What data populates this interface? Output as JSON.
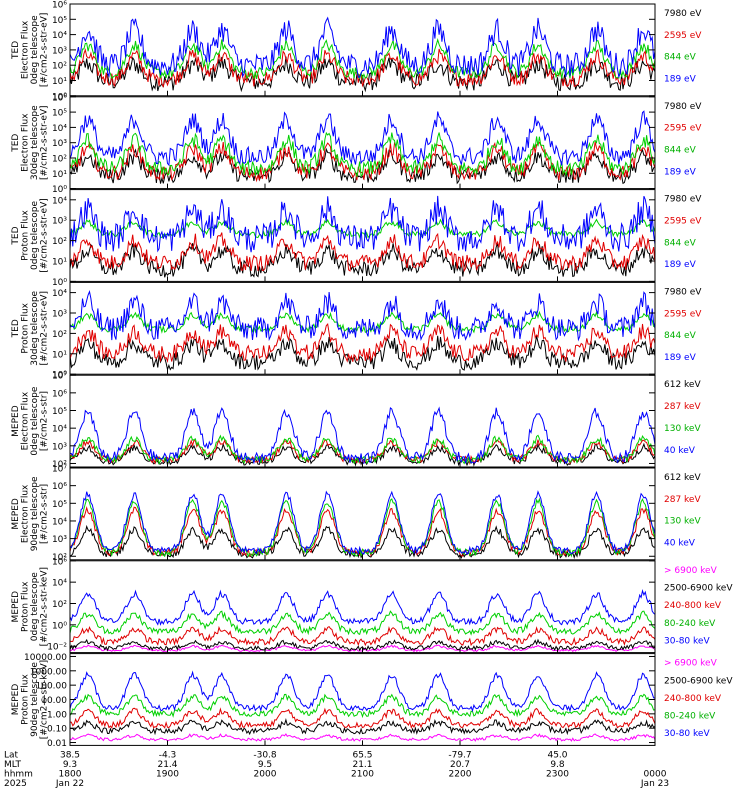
{
  "chart_data": [
    {
      "type": "line",
      "ylabel": [
        "TED",
        "Electron Flux",
        "0deg telescope",
        "[#/cm2-s-str-eV]"
      ],
      "ylog": true,
      "yticks": [
        {
          "v": 0,
          "t": "10⁰"
        },
        {
          "v": 1,
          "t": "10¹"
        },
        {
          "v": 2,
          "t": "10²"
        },
        {
          "v": 3,
          "t": "10³"
        },
        {
          "v": 4,
          "t": "10⁴"
        },
        {
          "v": 5,
          "t": "10⁵"
        },
        {
          "v": 6,
          "t": "10⁶"
        }
      ],
      "ylim": [
        0,
        6
      ],
      "series": [
        {
          "name": "7980 eV",
          "color": "#000000",
          "base": 0.9,
          "amp": 1.2,
          "noise": 0.6
        },
        {
          "name": "2595 eV",
          "color": "#e00000",
          "base": 1.1,
          "amp": 1.5,
          "noise": 0.5
        },
        {
          "name": "844 eV",
          "color": "#00d000",
          "base": 1.5,
          "amp": 1.8,
          "noise": 0.4
        },
        {
          "name": "189 eV",
          "color": "#0000ff",
          "base": 2.0,
          "amp": 2.3,
          "noise": 0.8
        }
      ]
    },
    {
      "type": "line",
      "ylabel": [
        "TED",
        "Electron Flux",
        "30deg telescope",
        "[#/cm2-s-str-eV]"
      ],
      "ylog": true,
      "yticks": [
        {
          "v": 0,
          "t": "10⁰"
        },
        {
          "v": 1,
          "t": "10¹"
        },
        {
          "v": 2,
          "t": "10²"
        },
        {
          "v": 3,
          "t": "10³"
        },
        {
          "v": 4,
          "t": "10⁴"
        },
        {
          "v": 5,
          "t": "10⁵"
        },
        {
          "v": 6,
          "t": "10⁶"
        }
      ],
      "ylim": [
        0,
        6
      ],
      "series": [
        {
          "name": "7980 eV",
          "color": "#000000",
          "base": 0.8,
          "amp": 1.3,
          "noise": 0.5
        },
        {
          "name": "2595 eV",
          "color": "#e00000",
          "base": 1.0,
          "amp": 1.6,
          "noise": 0.5
        },
        {
          "name": "844 eV",
          "color": "#00d000",
          "base": 1.3,
          "amp": 1.9,
          "noise": 0.5
        },
        {
          "name": "189 eV",
          "color": "#0000ff",
          "base": 2.1,
          "amp": 2.4,
          "noise": 0.6
        }
      ]
    },
    {
      "type": "line",
      "ylabel": [
        "TED",
        "Proton Flux",
        "0deg telescope",
        "[#/cm2-s-str-eV]"
      ],
      "ylog": true,
      "yticks": [
        {
          "v": 0,
          "t": "10⁰"
        },
        {
          "v": 1,
          "t": "10¹"
        },
        {
          "v": 2,
          "t": "10²"
        },
        {
          "v": 3,
          "t": "10³"
        },
        {
          "v": 4,
          "t": "10⁴"
        }
      ],
      "ylim": [
        0,
        4.5
      ],
      "series": [
        {
          "name": "7980 eV",
          "color": "#000000",
          "base": 0.6,
          "amp": 0.9,
          "noise": 0.4
        },
        {
          "name": "2595 eV",
          "color": "#e00000",
          "base": 0.9,
          "amp": 1.1,
          "noise": 0.4
        },
        {
          "name": "844 eV",
          "color": "#00d000",
          "base": 2.3,
          "amp": 0.6,
          "noise": 0.15
        },
        {
          "name": "189 eV",
          "color": "#0000ff",
          "base": 2.1,
          "amp": 1.4,
          "noise": 0.7
        }
      ]
    },
    {
      "type": "line",
      "ylabel": [
        "TED",
        "Proton Flux",
        "30deg telescope",
        "[#/cm2-s-str-eV]"
      ],
      "ylog": true,
      "yticks": [
        {
          "v": 0,
          "t": "10⁰"
        },
        {
          "v": 1,
          "t": "10¹"
        },
        {
          "v": 2,
          "t": "10²"
        },
        {
          "v": 3,
          "t": "10³"
        },
        {
          "v": 4,
          "t": "10⁴"
        }
      ],
      "ylim": [
        0,
        4.5
      ],
      "series": [
        {
          "name": "7980 eV",
          "color": "#000000",
          "base": 0.6,
          "amp": 0.9,
          "noise": 0.4
        },
        {
          "name": "2595 eV",
          "color": "#e00000",
          "base": 1.0,
          "amp": 1.1,
          "noise": 0.4
        },
        {
          "name": "844 eV",
          "color": "#00d000",
          "base": 2.2,
          "amp": 0.7,
          "noise": 0.15
        },
        {
          "name": "189 eV",
          "color": "#0000ff",
          "base": 2.2,
          "amp": 1.3,
          "noise": 0.6
        }
      ]
    },
    {
      "type": "line",
      "ylabel": [
        "MEPED",
        "Electron Flux",
        "0deg telescope",
        "[#/cm2-s-str]"
      ],
      "ylog": true,
      "yticks": [
        {
          "v": 2,
          "t": "10²"
        },
        {
          "v": 3,
          "t": "10³"
        },
        {
          "v": 4,
          "t": "10⁴"
        },
        {
          "v": 5,
          "t": "10⁵"
        },
        {
          "v": 6,
          "t": "10⁶"
        },
        {
          "v": 7,
          "t": "10⁷"
        }
      ],
      "ylim": [
        1.8,
        7
      ],
      "series": [
        {
          "name": "612 keV",
          "color": "#000000",
          "base": 2.1,
          "amp": 0.8,
          "noise": 0.2
        },
        {
          "name": "287 keV",
          "color": "#e00000",
          "base": 2.2,
          "amp": 1.0,
          "noise": 0.2
        },
        {
          "name": "130 keV",
          "color": "#00d000",
          "base": 2.2,
          "amp": 1.2,
          "noise": 0.2
        },
        {
          "name": "40 keV",
          "color": "#0000ff",
          "base": 2.3,
          "amp": 2.6,
          "noise": 0.3
        }
      ]
    },
    {
      "type": "line",
      "ylabel": [
        "MEPED",
        "Electron Flux",
        "90deg telescope",
        "[#/cm2-s-str]"
      ],
      "ylog": true,
      "yticks": [
        {
          "v": 2,
          "t": "10²"
        },
        {
          "v": 3,
          "t": "10³"
        },
        {
          "v": 4,
          "t": "10⁴"
        },
        {
          "v": 5,
          "t": "10⁵"
        },
        {
          "v": 6,
          "t": "10⁶"
        },
        {
          "v": 7,
          "t": "10⁷"
        }
      ],
      "ylim": [
        1.8,
        7
      ],
      "series": [
        {
          "name": "612 keV",
          "color": "#000000",
          "base": 2.1,
          "amp": 1.4,
          "noise": 0.2
        },
        {
          "name": "287 keV",
          "color": "#e00000",
          "base": 2.2,
          "amp": 2.4,
          "noise": 0.2
        },
        {
          "name": "130 keV",
          "color": "#00d000",
          "base": 2.2,
          "amp": 2.9,
          "noise": 0.2
        },
        {
          "name": "40 keV",
          "color": "#0000ff",
          "base": 2.3,
          "amp": 3.2,
          "noise": 0.2
        }
      ]
    },
    {
      "type": "line",
      "ylabel": [
        "MEPED",
        "Proton Flux",
        "0deg telescope",
        "[#/cm2-s-str-keV]"
      ],
      "ylog": true,
      "yticks": [
        {
          "v": -2,
          "t": "10⁻²"
        },
        {
          "v": 0,
          "t": "10⁰"
        },
        {
          "v": 2,
          "t": "10²"
        },
        {
          "v": 4,
          "t": "10⁴"
        },
        {
          "v": 6,
          "t": "10⁶"
        }
      ],
      "ylim": [
        -2.6,
        6
      ],
      "series": [
        {
          "name": "> 6900 keV",
          "color": "#ff00ff",
          "base": -2.4,
          "amp": 0.4,
          "noise": 0.1
        },
        {
          "name": "2500-6900 keV",
          "color": "#000000",
          "base": -2.2,
          "amp": 0.6,
          "noise": 0.2
        },
        {
          "name": "240-800 keV",
          "color": "#e00000",
          "base": -1.6,
          "amp": 1.2,
          "noise": 0.3
        },
        {
          "name": "80-240 keV",
          "color": "#00d000",
          "base": -0.6,
          "amp": 1.6,
          "noise": 0.3
        },
        {
          "name": "30-80 keV",
          "color": "#0000ff",
          "base": 0.3,
          "amp": 2.6,
          "noise": 0.3
        }
      ]
    },
    {
      "type": "line",
      "ylabel": [
        "MEPED",
        "Proton Flux",
        "90deg telescope",
        "[#/cm2-s-str-keV]"
      ],
      "ylog": true,
      "yticks": [
        {
          "v": -2,
          "t": "0.01"
        },
        {
          "v": -1,
          "t": "0.10"
        },
        {
          "v": 0,
          "t": "1.00"
        },
        {
          "v": 1,
          "t": "10.00"
        },
        {
          "v": 2,
          "t": "100.00"
        },
        {
          "v": 3,
          "t": "1000.00"
        },
        {
          "v": 4,
          "t": "10000.00"
        }
      ],
      "ylim": [
        -2.2,
        4.2
      ],
      "series": [
        {
          "name": "> 6900 keV",
          "color": "#ff00ff",
          "base": -1.8,
          "amp": 0.3,
          "noise": 0.1
        },
        {
          "name": "2500-6900 keV",
          "color": "#000000",
          "base": -1.2,
          "amp": 0.6,
          "noise": 0.2
        },
        {
          "name": "240-800 keV",
          "color": "#e00000",
          "base": -0.8,
          "amp": 1.0,
          "noise": 0.2
        },
        {
          "name": "80-240 keV",
          "color": "#00d000",
          "base": 0.0,
          "amp": 1.2,
          "noise": 0.2
        },
        {
          "name": "30-80 keV",
          "color": "#0000ff",
          "base": 0.4,
          "amp": 2.3,
          "noise": 0.2
        }
      ]
    }
  ],
  "passes": [
    0.03,
    0.11,
    0.21,
    0.26,
    0.37,
    0.44,
    0.55,
    0.63,
    0.73,
    0.8,
    0.9,
    0.98
  ],
  "xaxis": {
    "row_labels": [
      "Lat",
      "MLT",
      "hhmm",
      "2025"
    ],
    "columns": [
      {
        "frac": 0.0,
        "values": [
          "38.5",
          "9.3",
          "1800",
          "Jan 22"
        ]
      },
      {
        "frac": 0.2,
        "values": [
          "-4.3",
          "21.4",
          "1900",
          ""
        ]
      },
      {
        "frac": 0.4,
        "values": [
          "-30.8",
          "9.5",
          "2000",
          ""
        ]
      },
      {
        "frac": 0.6,
        "values": [
          "65.5",
          "21.1",
          "2100",
          ""
        ]
      },
      {
        "frac": 0.8,
        "values": [
          "-79.7",
          "20.7",
          "2200",
          ""
        ]
      },
      {
        "frac": 1.0,
        "values": [
          "45.0",
          "9.8",
          "2300",
          ""
        ]
      },
      {
        "frac": 1.2,
        "values": [
          "",
          "",
          "0000",
          "Jan 23"
        ]
      }
    ]
  }
}
